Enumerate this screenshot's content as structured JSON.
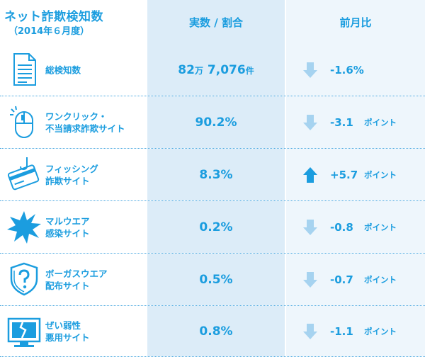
{
  "header": {
    "title": "ネット詐欺検知数",
    "subtitle": "（2014年６月度）",
    "col2": "実数 / 割合",
    "col3": "前月比"
  },
  "colors": {
    "text": "#1b9ddf",
    "col2_bg": "#dcecf8",
    "col3_bg": "#eef6fc",
    "arrow_down": "#a6d3f0",
    "arrow_up": "#1b9ddf"
  },
  "rows": [
    {
      "icon": "document-icon",
      "label1": "総検知数",
      "label2": "",
      "value_num": "82",
      "value_unit1": "万",
      "value_num2": "7,076",
      "value_unit2": "件",
      "direction": "down",
      "delta": "-1.6%",
      "delta_unit": ""
    },
    {
      "icon": "mouse-icon",
      "label1": "ワンクリック・",
      "label2": "不当請求詐欺サイト",
      "value": "90.2%",
      "direction": "down",
      "delta": "-3.1",
      "delta_unit": "ポイント"
    },
    {
      "icon": "credit-card-hook-icon",
      "label1": "フィッシング",
      "label2": "詐欺サイト",
      "value": "8.3%",
      "direction": "up",
      "delta": "+5.7",
      "delta_unit": "ポイント"
    },
    {
      "icon": "malware-splat-icon",
      "label1": "マルウエア",
      "label2": "感染サイト",
      "value": "0.2%",
      "direction": "down",
      "delta": "-0.8",
      "delta_unit": "ポイント"
    },
    {
      "icon": "shield-question-icon",
      "label1": "ボーガスウエア",
      "label2": "配布サイト",
      "value": "0.5%",
      "direction": "down",
      "delta": "-0.7",
      "delta_unit": "ポイント"
    },
    {
      "icon": "broken-monitor-icon",
      "label1": "ぜい弱性",
      "label2": "悪用サイト",
      "value": "0.8%",
      "direction": "down",
      "delta": "-1.1",
      "delta_unit": "ポイント"
    }
  ]
}
